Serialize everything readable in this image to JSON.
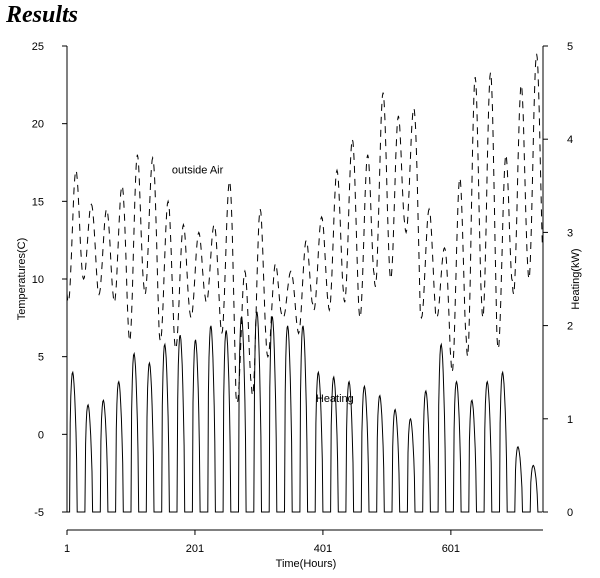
{
  "page": {
    "title": "Results"
  },
  "chart_data": {
    "type": "line",
    "xlabel": "Time(Hours)",
    "ylabel": "Temperatures(C)",
    "y2label": "Heating(kW)",
    "xlim": [
      1,
      745
    ],
    "ylim": [
      -5,
      25
    ],
    "y2lim": [
      0,
      5
    ],
    "x_ticks": [
      1,
      201,
      401,
      601
    ],
    "y_ticks": [
      -5,
      0,
      5,
      10,
      15,
      20,
      25
    ],
    "y2_ticks": [
      0,
      1,
      2,
      3,
      4,
      5
    ],
    "grid": false,
    "annotations": [
      {
        "text": "outside Air",
        "x": 165,
        "y": 16.8
      },
      {
        "text": "Heating",
        "x": 390,
        "y": 1.18
      }
    ],
    "series": [
      {
        "axis": "left",
        "style": "dashed",
        "days": [
          {
            "start": 1,
            "min": 8.5,
            "max": 17.0
          },
          {
            "start": 25,
            "min": 10.0,
            "max": 14.8
          },
          {
            "start": 49,
            "min": 9.0,
            "max": 14.5
          },
          {
            "start": 73,
            "min": 8.5,
            "max": 16.0
          },
          {
            "start": 97,
            "min": 6.0,
            "max": 18.0
          },
          {
            "start": 121,
            "min": 9.0,
            "max": 17.8
          },
          {
            "start": 145,
            "min": 6.0,
            "max": 15.0
          },
          {
            "start": 169,
            "min": 5.5,
            "max": 13.5
          },
          {
            "start": 193,
            "min": 7.5,
            "max": 13.0
          },
          {
            "start": 217,
            "min": 8.5,
            "max": 13.5
          },
          {
            "start": 241,
            "min": 6.5,
            "max": 16.3
          },
          {
            "start": 265,
            "min": 2.0,
            "max": 10.5
          },
          {
            "start": 289,
            "min": 2.5,
            "max": 14.5
          },
          {
            "start": 313,
            "min": 5.0,
            "max": 11.0
          },
          {
            "start": 337,
            "min": 7.5,
            "max": 10.5
          },
          {
            "start": 361,
            "min": 6.5,
            "max": 12.5
          },
          {
            "start": 385,
            "min": 8.0,
            "max": 14.0
          },
          {
            "start": 409,
            "min": 8.0,
            "max": 17.0
          },
          {
            "start": 433,
            "min": 8.5,
            "max": 19.0
          },
          {
            "start": 457,
            "min": 7.5,
            "max": 18.0
          },
          {
            "start": 481,
            "min": 9.5,
            "max": 22.0
          },
          {
            "start": 505,
            "min": 10.0,
            "max": 20.5
          },
          {
            "start": 529,
            "min": 13.0,
            "max": 21.0
          },
          {
            "start": 553,
            "min": 7.5,
            "max": 14.5
          },
          {
            "start": 577,
            "min": 7.5,
            "max": 12.0
          },
          {
            "start": 601,
            "min": 4.0,
            "max": 16.5
          },
          {
            "start": 625,
            "min": 5.0,
            "max": 23.0
          },
          {
            "start": 649,
            "min": 7.5,
            "max": 23.3
          },
          {
            "start": 673,
            "min": 5.5,
            "max": 18.0
          },
          {
            "start": 697,
            "min": 9.0,
            "max": 22.5
          },
          {
            "start": 721,
            "min": 10.0,
            "max": 24.5
          }
        ]
      },
      {
        "axis": "right",
        "style": "solid",
        "days": [
          {
            "start": 1,
            "peak": 1.5
          },
          {
            "start": 25,
            "peak": 1.15
          },
          {
            "start": 49,
            "peak": 1.2
          },
          {
            "start": 73,
            "peak": 1.4
          },
          {
            "start": 97,
            "peak": 1.7
          },
          {
            "start": 121,
            "peak": 1.6
          },
          {
            "start": 145,
            "peak": 1.8
          },
          {
            "start": 169,
            "peak": 1.9
          },
          {
            "start": 193,
            "peak": 1.85
          },
          {
            "start": 217,
            "peak": 2.0
          },
          {
            "start": 241,
            "peak": 1.95
          },
          {
            "start": 265,
            "peak": 2.1
          },
          {
            "start": 289,
            "peak": 2.15
          },
          {
            "start": 313,
            "peak": 2.1
          },
          {
            "start": 337,
            "peak": 2.0
          },
          {
            "start": 361,
            "peak": 2.0
          },
          {
            "start": 385,
            "peak": 1.5
          },
          {
            "start": 409,
            "peak": 1.45
          },
          {
            "start": 433,
            "peak": 1.4
          },
          {
            "start": 457,
            "peak": 1.35
          },
          {
            "start": 481,
            "peak": 1.25
          },
          {
            "start": 505,
            "peak": 1.1
          },
          {
            "start": 529,
            "peak": 1.0
          },
          {
            "start": 553,
            "peak": 1.3
          },
          {
            "start": 577,
            "peak": 1.8
          },
          {
            "start": 601,
            "peak": 1.4
          },
          {
            "start": 625,
            "peak": 1.2
          },
          {
            "start": 649,
            "peak": 1.4
          },
          {
            "start": 673,
            "peak": 1.5
          },
          {
            "start": 697,
            "peak": 0.7
          },
          {
            "start": 721,
            "peak": 0.5
          }
        ]
      }
    ]
  }
}
